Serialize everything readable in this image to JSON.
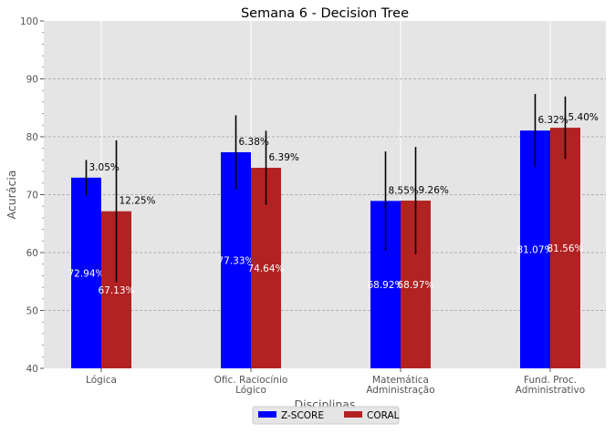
{
  "chart_data": {
    "type": "bar",
    "title": "Semana 6 - Decision Tree",
    "xlabel": "Disciplinas",
    "ylabel": "Acurácia",
    "ylim": [
      40,
      100
    ],
    "yticks": [
      40,
      50,
      60,
      70,
      80,
      90,
      100
    ],
    "grid": true,
    "legend_position": "bottom-center",
    "categories": [
      [
        "Lógica"
      ],
      [
        "Ofic. Raciocínio",
        "Lógico"
      ],
      [
        "Matemática",
        "Administração"
      ],
      [
        "Fund. Proc.",
        "Administrativo"
      ]
    ],
    "series": [
      {
        "name": "Z-SCORE",
        "color": "#0000ff",
        "values": [
          72.94,
          77.33,
          68.92,
          81.07
        ],
        "value_labels": [
          "72.94%",
          "77.33%",
          "68.92%",
          "81.07%"
        ],
        "errors": [
          3.05,
          6.38,
          8.55,
          6.32
        ],
        "error_labels": [
          "3.05%",
          "6.38%",
          "8.55%",
          "6.32%"
        ]
      },
      {
        "name": "CORAL",
        "color": "#b22222",
        "values": [
          67.13,
          74.64,
          68.97,
          81.56
        ],
        "value_labels": [
          "67.13%",
          "74.64%",
          "68.97%",
          "81.56%"
        ],
        "errors": [
          12.25,
          6.39,
          9.26,
          5.4
        ],
        "error_labels": [
          "12.25%",
          "6.39%",
          "9.26%",
          "5.40%"
        ]
      }
    ]
  }
}
